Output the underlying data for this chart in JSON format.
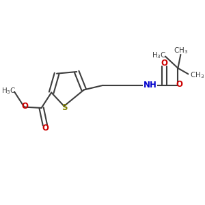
{
  "bg_color": "#ffffff",
  "bond_color": "#3d3d3d",
  "sulfur_color": "#808000",
  "oxygen_color": "#cc0000",
  "nitrogen_color": "#0000cc",
  "lw": 1.5,
  "fs_label": 8.5,
  "fs_small": 7.5,
  "xlim": [
    0,
    10
  ],
  "ylim": [
    0,
    10
  ]
}
